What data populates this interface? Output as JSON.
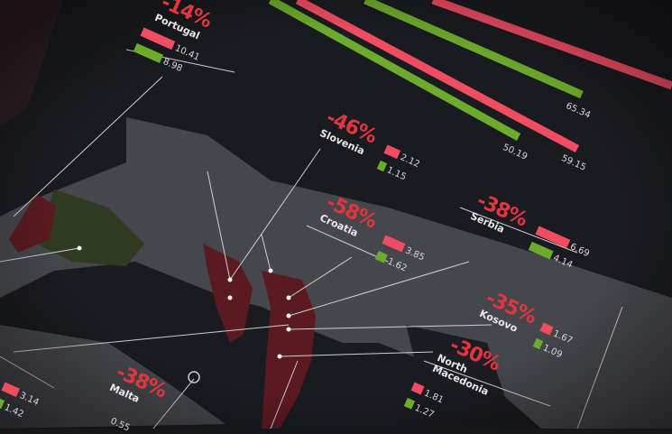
{
  "colors": {
    "background": "#16171c",
    "land": "#46474c",
    "highlight": "#5a1a20",
    "decline": "#e2363f",
    "before_bar": "#f04d63",
    "after_bar": "#6cab2c"
  },
  "chart_data": {
    "type": "bar",
    "series": [
      {
        "values": "before (red)"
      },
      {
        "values": "after (green)"
      }
    ],
    "top_bars": [
      {
        "color": "red"
      },
      {
        "color": "green",
        "value": "65.34"
      },
      {
        "color": "green",
        "value": "50.19"
      },
      {
        "color": "red",
        "value": "59.15"
      }
    ],
    "countries": [
      {
        "name": "Portugal",
        "change": "-14%",
        "before": "10.41",
        "after": "8.98"
      },
      {
        "name": "Slovenia",
        "change": "-46%",
        "before": "2.12",
        "after": "1.15"
      },
      {
        "name": "Croatia",
        "change": "-58%",
        "before": "3.85",
        "after": "1.62"
      },
      {
        "name": "Serbia",
        "change": "-38%",
        "before": "6.69",
        "after": "4.14"
      },
      {
        "name": "Kosovo",
        "change": "-35%",
        "before": "1.67",
        "after": "1.09"
      },
      {
        "name": "North Macedonia",
        "change": "-30%",
        "before": "1.81",
        "after": "1.27"
      },
      {
        "name": "Malta",
        "change": "-38%",
        "before": "0.55"
      },
      {
        "name": "",
        "change": "",
        "before": "3.14",
        "after": "1.42"
      }
    ]
  }
}
